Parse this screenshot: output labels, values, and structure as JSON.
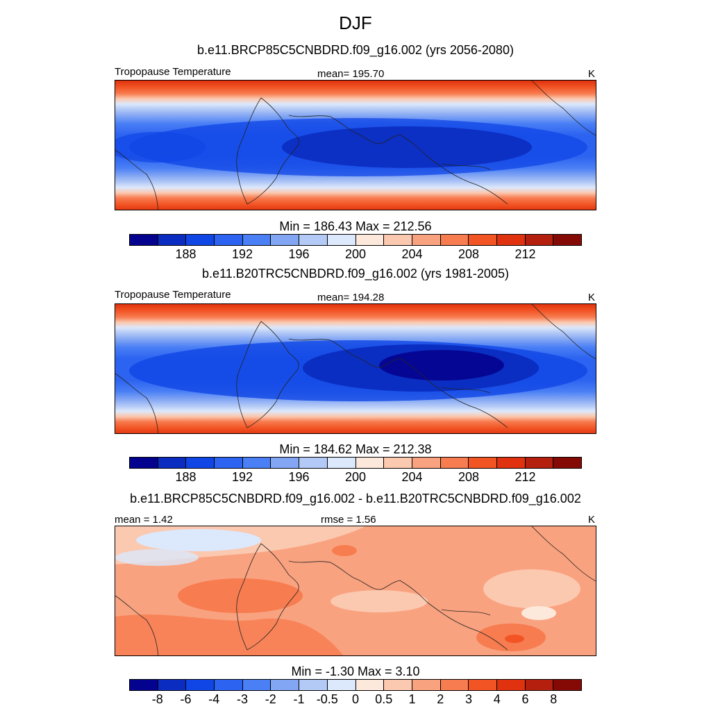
{
  "title": "DJF",
  "colorbar_colors": [
    "#04038f",
    "#0b2cc0",
    "#1046e5",
    "#2c63f0",
    "#4a7ff5",
    "#83a6f4",
    "#b3c9f6",
    "#dce8fb",
    "#fde9dc",
    "#fbc8b0",
    "#f9a27f",
    "#f77c50",
    "#f25424",
    "#e0320e",
    "#b4200d",
    "#850a06"
  ],
  "panels": [
    {
      "subtitle": "b.e11.BRCP85C5CNBDRD.f09_g16.002 (yrs 2056-2080)",
      "left_label": "Tropopause Temperature",
      "center_label": "mean= 195.70",
      "units": "K",
      "minmax": "Min = 186.43 Max = 212.56",
      "colorbar_ticks": [
        "188",
        "192",
        "196",
        "200",
        "204",
        "208",
        "212"
      ]
    },
    {
      "subtitle": "b.e11.B20TRC5CNBDRD.f09_g16.002 (yrs 1981-2005)",
      "left_label": "Tropopause Temperature",
      "center_label": "mean= 194.28",
      "units": "K",
      "minmax": "Min = 184.62 Max = 212.38",
      "colorbar_ticks": [
        "188",
        "192",
        "196",
        "200",
        "204",
        "208",
        "212"
      ]
    },
    {
      "subtitle": "b.e11.BRCP85C5CNBDRD.f09_g16.002 - b.e11.B20TRC5CNBDRD.f09_g16.002",
      "left_label": "mean =   1.42",
      "center_label": "rmse =   1.56",
      "units": "K",
      "minmax": "Min =  -1.30 Max =   3.10",
      "colorbar_ticks": [
        "-8",
        "-6",
        "-4",
        "-3",
        "-2",
        "-1",
        "-0.5",
        "0",
        "0.5",
        "1",
        "2",
        "3",
        "4",
        "6",
        "8"
      ]
    }
  ]
}
